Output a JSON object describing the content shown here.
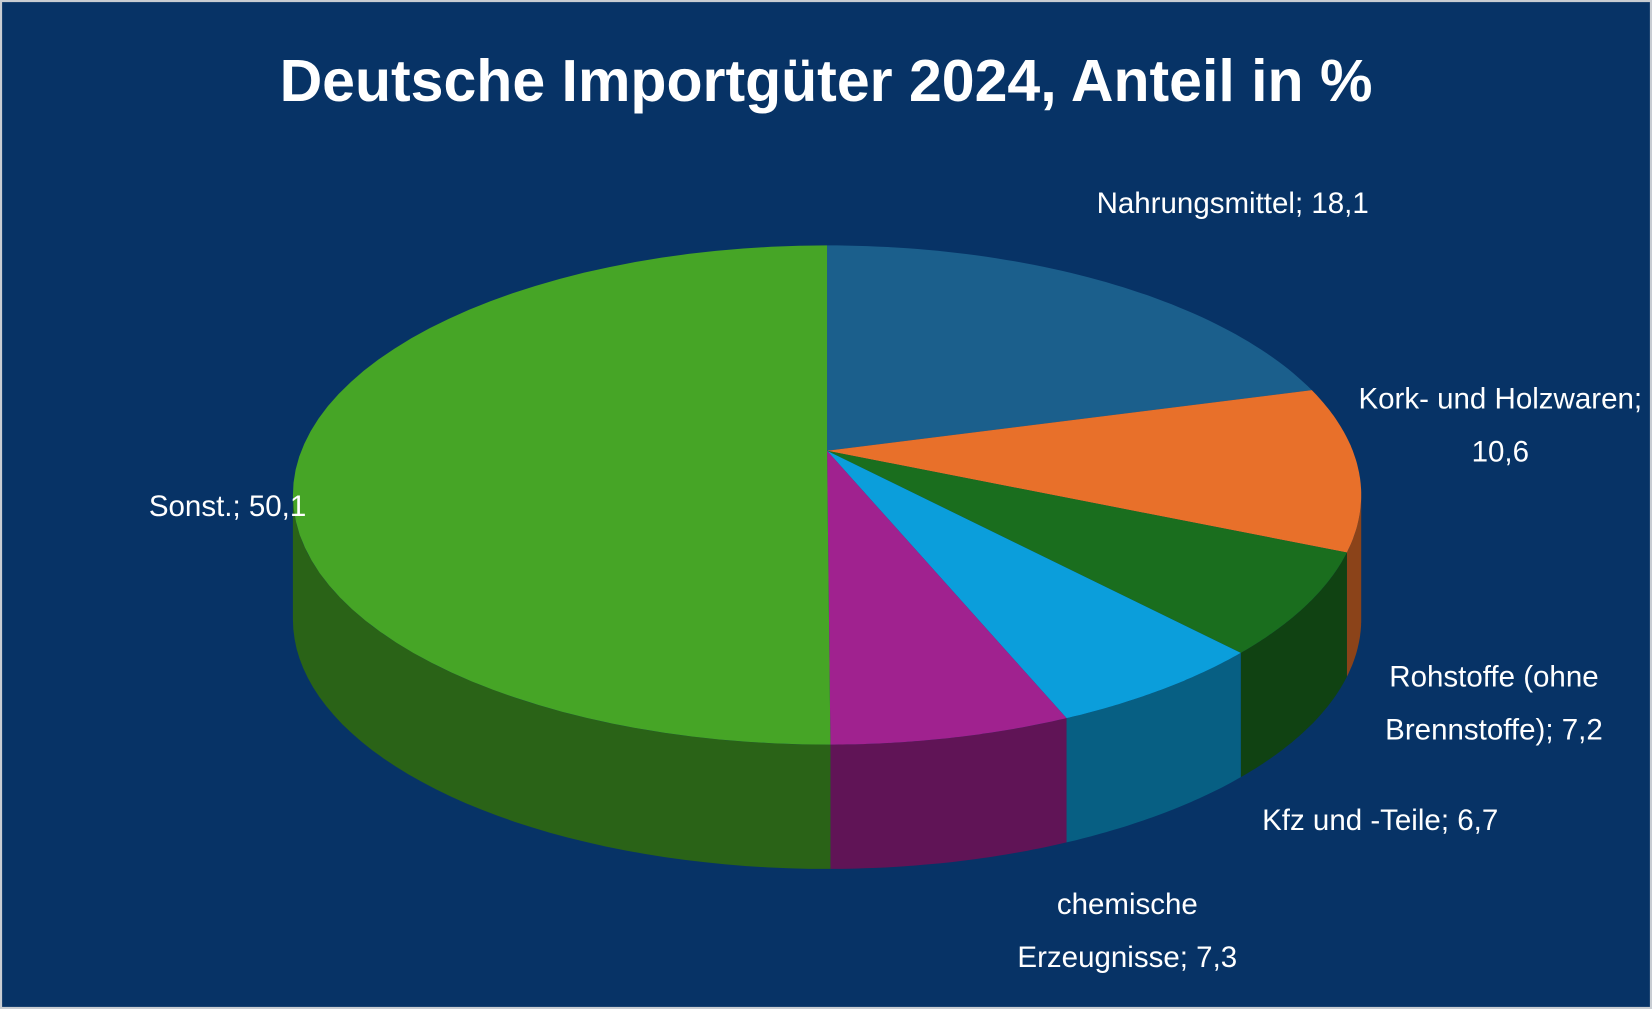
{
  "chart_data": {
    "type": "pie3d",
    "title": "Deutsche Importgüter 2024, Anteil in %",
    "categories": [
      "Nahrungsmittel;",
      "Kork- und Holzwaren;",
      "Rohstoffe (ohne Brennstoffe);",
      "Kfz und -Teile;",
      "chemische Erzeugnisse;",
      "Sonst.;"
    ],
    "values": [
      18.1,
      10.6,
      7.2,
      6.7,
      7.3,
      50.1
    ],
    "value_labels": [
      "18,1",
      "10,6",
      "7,2",
      "6,7",
      "7,3",
      "50,1"
    ],
    "colors": [
      "#1b5f8c",
      "#e8702a",
      "#1a6e1e",
      "#0b9edb",
      "#a0228f",
      "#46a526"
    ]
  }
}
